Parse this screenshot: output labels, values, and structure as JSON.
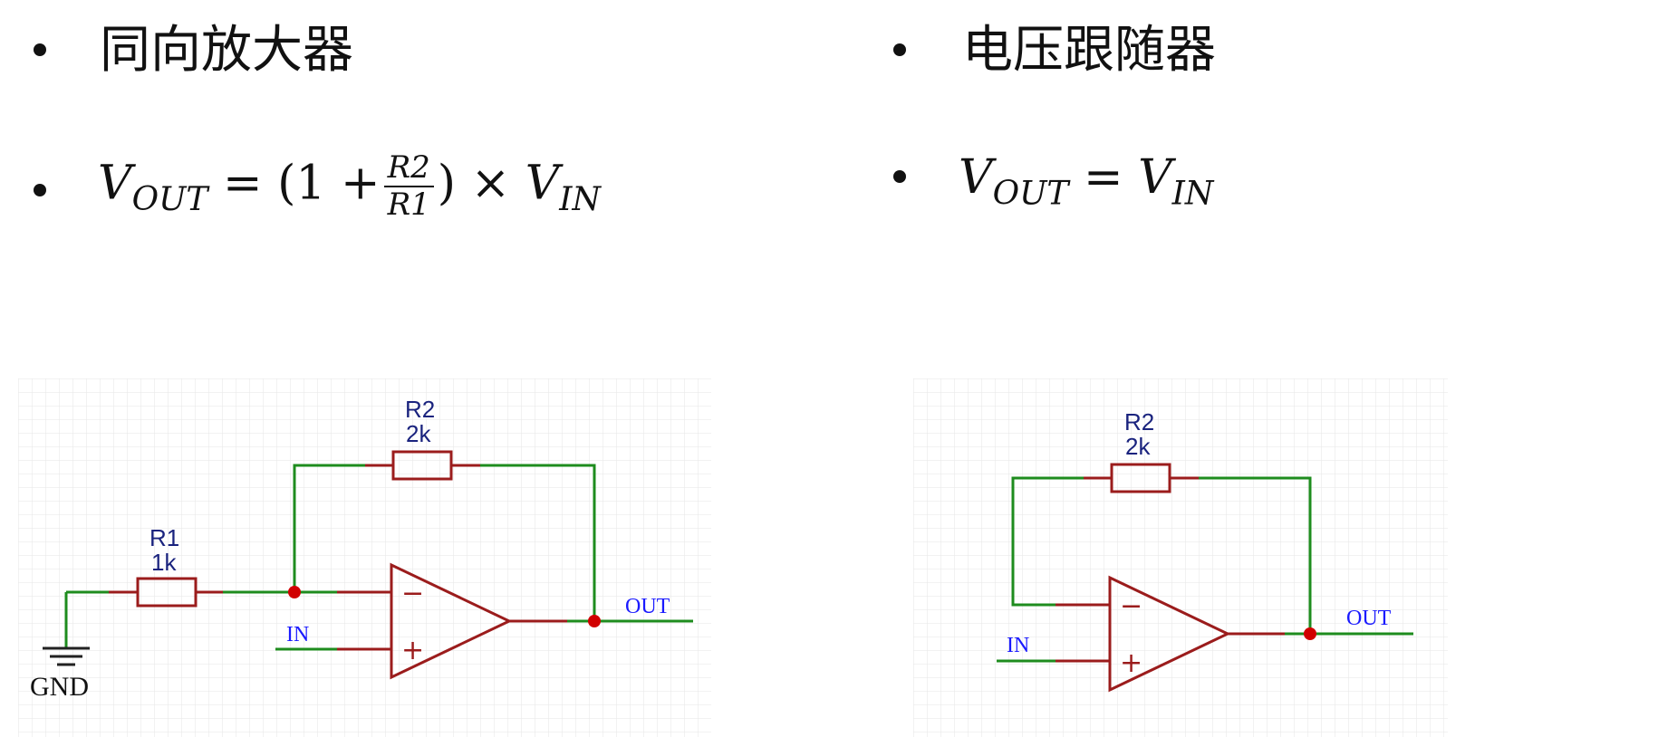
{
  "left": {
    "heading": "同向放大器",
    "formula": {
      "lhs_var": "V",
      "lhs_sub": "OUT",
      "eq": "=",
      "open": "(1 +",
      "frac_num": "R2",
      "frac_den": "R1",
      "close": ")",
      "times": "×",
      "rhs_var": "V",
      "rhs_sub": "IN"
    },
    "circuit": {
      "r1_name": "R1",
      "r1_value": "1k",
      "r2_name": "R2",
      "r2_value": "2k",
      "minus": "−",
      "plus": "+",
      "in_label": "IN",
      "out_label": "OUT",
      "gnd_label": "GND"
    }
  },
  "right": {
    "heading": "电压跟随器",
    "formula": {
      "lhs_var": "V",
      "lhs_sub": "OUT",
      "eq": "=",
      "rhs_var": "V",
      "rhs_sub": "IN"
    },
    "circuit": {
      "r2_name": "R2",
      "r2_value": "2k",
      "minus": "−",
      "plus": "+",
      "in_label": "IN",
      "out_label": "OUT"
    }
  },
  "colors": {
    "wire": "#1e8c1e",
    "component": "#9b1c1c",
    "node": "#d10000",
    "grid": "#e6e6e6"
  }
}
